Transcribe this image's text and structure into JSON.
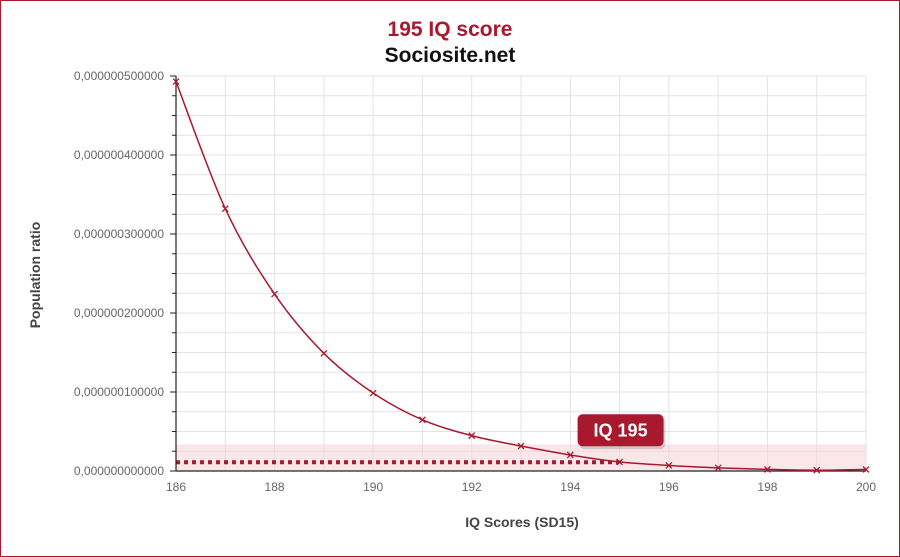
{
  "header": {
    "title": "195 IQ score",
    "subtitle": "Sociosite.net"
  },
  "colors": {
    "accent": "#a8192e",
    "grid": "#e3e3e3",
    "highlight": "#f6d3d8"
  },
  "chart_data": {
    "type": "line",
    "title": "195 IQ score",
    "subtitle": "Sociosite.net",
    "xlabel": "IQ Scores (SD15)",
    "ylabel": "Population ratio",
    "xlim": [
      186,
      200
    ],
    "ylim": [
      0,
      5e-07
    ],
    "x_ticks": [
      "186",
      "188",
      "190",
      "192",
      "194",
      "196",
      "198",
      "200"
    ],
    "y_ticks": [
      "0,000000000000",
      "0,000000100000",
      "0,000000200000",
      "0,000000300000",
      "0,000000400000",
      "0,000000500000"
    ],
    "grid": true,
    "series": [
      {
        "x": [
          186,
          187,
          188,
          189,
          190,
          191,
          192,
          193,
          194,
          195,
          196,
          197,
          198,
          199,
          200
        ],
        "values": [
          4.93e-07,
          3.32e-07,
          2.24e-07,
          1.49e-07,
          9.87e-08,
          6.48e-08,
          4.48e-08,
          3.16e-08,
          2.03e-08,
          1.15e-08,
          7e-09,
          4e-09,
          2e-09,
          1e-09,
          2e-09
        ]
      }
    ],
    "highlight": {
      "label": "IQ 195",
      "x": 195,
      "value": 1.1e-08
    }
  }
}
